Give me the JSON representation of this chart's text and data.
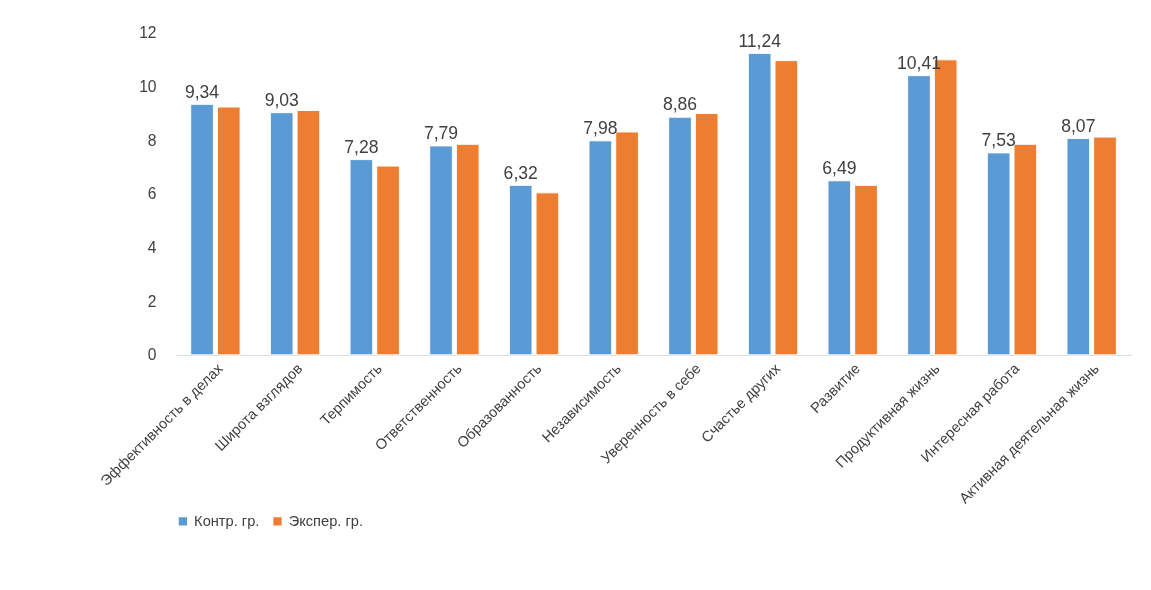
{
  "chart_data": {
    "type": "bar",
    "categories": [
      "Эффективность в делах",
      "Широта взглядов",
      "Терпимость",
      "Ответственность",
      "Образованность",
      "Независимость",
      "Уверенность в себе",
      "Счастье других",
      "Развитие",
      "Продуктивная жизнь",
      "Интересная работа",
      "Активная деятельная жизнь"
    ],
    "series": [
      {
        "name": "Контр. гр.",
        "color": "#5b9bd5",
        "values": [
          9.34,
          9.03,
          7.28,
          7.79,
          6.32,
          7.98,
          8.86,
          11.24,
          6.49,
          10.41,
          7.53,
          8.07
        ],
        "value_labels": [
          "9,34",
          "9,03",
          "7,28",
          "7,79",
          "6,32",
          "7,98",
          "8,86",
          "11,24",
          "6,49",
          "10,41",
          "7,53",
          "8,07"
        ]
      },
      {
        "name": "Экспер. гр.",
        "color": "#ed7d31",
        "values": [
          9.24,
          9.11,
          7.04,
          7.85,
          6.04,
          8.31,
          9.0,
          10.97,
          6.32,
          11.0,
          7.85,
          8.12
        ]
      }
    ],
    "ylim": [
      0,
      12
    ],
    "yticks": [
      0,
      2,
      4,
      6,
      8,
      10,
      12
    ],
    "grid": false,
    "legend": "bottom"
  }
}
